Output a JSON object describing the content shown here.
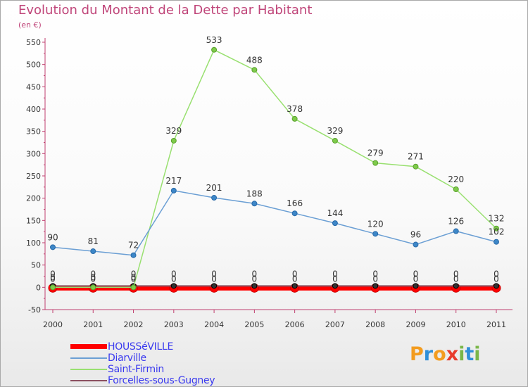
{
  "header": {
    "title": "Evolution du Montant de la Dette par Habitant",
    "unit": "(en €)"
  },
  "brand": {
    "name": "Proxiti",
    "letters": [
      {
        "ch": "P",
        "color": "#f39c1f"
      },
      {
        "ch": "r",
        "color": "#2f8fd8"
      },
      {
        "ch": "o",
        "color": "#f39c1f"
      },
      {
        "ch": "x",
        "color": "#e83a2b"
      },
      {
        "ch": "i",
        "color": "#7ab648"
      },
      {
        "ch": "t",
        "color": "#2f8fd8"
      },
      {
        "ch": "i",
        "color": "#7ab648"
      }
    ]
  },
  "chart_data": {
    "type": "line",
    "title": "Evolution du Montant de la Dette par Habitant",
    "ylabel": "(en €)",
    "xlabel": "",
    "x": [
      "2000",
      "2001",
      "2002",
      "2003",
      "2004",
      "2005",
      "2006",
      "2007",
      "2008",
      "2009",
      "2010",
      "2011"
    ],
    "yticks": [
      -50,
      0,
      50,
      100,
      150,
      200,
      250,
      300,
      350,
      400,
      450,
      500,
      550
    ],
    "ylim": [
      -50,
      550
    ],
    "grid": false,
    "legend_position": "bottom-left",
    "series": [
      {
        "name": "HOUSSéVILLE",
        "color": "#ff0000",
        "values": [
          0,
          0,
          0,
          0,
          0,
          0,
          0,
          0,
          0,
          0,
          0,
          0
        ]
      },
      {
        "name": "Diarville",
        "color": "#6b9fd4",
        "values": [
          90,
          81,
          72,
          217,
          201,
          188,
          166,
          144,
          120,
          96,
          126,
          102
        ]
      },
      {
        "name": "Saint-Firmin",
        "color": "#99e070",
        "values": [
          0,
          0,
          0,
          329,
          533,
          488,
          378,
          329,
          279,
          271,
          220,
          132
        ]
      },
      {
        "name": "Forcelles-sous-Gugney",
        "color": "#8b5060",
        "values": [
          0,
          0,
          0,
          0,
          0,
          0,
          0,
          0,
          0,
          0,
          0,
          0
        ]
      }
    ]
  }
}
